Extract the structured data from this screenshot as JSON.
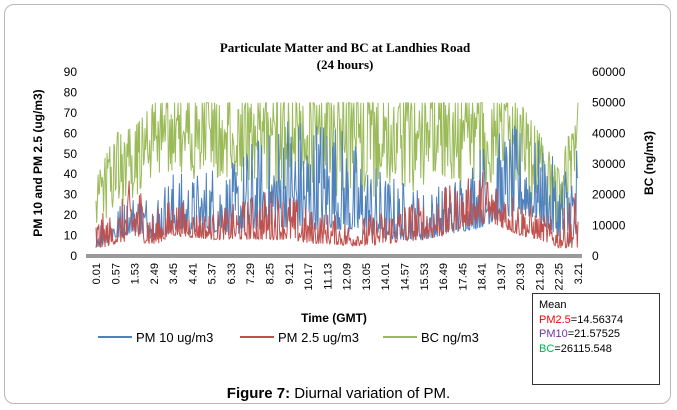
{
  "chart_data": {
    "type": "line",
    "title": "Particulate Matter and BC at Landhies Road",
    "subtitle": "(24 hours)",
    "xlabel": "Time (GMT)",
    "ylabel_left": "PM 10 and PM 2.5 (ug/m3)",
    "ylabel_right": "BC (ng/m3)",
    "ylim_left": [
      0,
      90
    ],
    "ylim_right": [
      0,
      60000
    ],
    "yticks_left": [
      "0",
      "10",
      "20",
      "30",
      "40",
      "50",
      "60",
      "70",
      "80",
      "90"
    ],
    "yticks_right": [
      "0",
      "10000",
      "20000",
      "30000",
      "40000",
      "50000",
      "60000"
    ],
    "x_tick_labels": [
      "0.01",
      "0.57",
      "1.53",
      "2.49",
      "3.45",
      "4.41",
      "5.37",
      "6.33",
      "7.29",
      "8.25",
      "9.21",
      "10.17",
      "11.13",
      "12.09",
      "13.05",
      "14.01",
      "14.57",
      "15.53",
      "16.49",
      "17.45",
      "18.41",
      "19.37",
      "20.33",
      "21.29",
      "22.25",
      "3.21"
    ],
    "grid": false,
    "legend_position": "bottom",
    "series": [
      {
        "name": "PM 10 ug/m3",
        "color": "#4f81bd",
        "axis": "left",
        "envelope": [
          [
            0,
            4,
            20
          ],
          [
            1,
            8,
            25
          ],
          [
            2,
            12,
            32
          ],
          [
            3,
            8,
            33
          ],
          [
            4,
            12,
            43
          ],
          [
            5,
            11,
            40
          ],
          [
            6,
            12,
            48
          ],
          [
            7,
            10,
            45
          ],
          [
            8,
            12,
            58
          ],
          [
            9,
            14,
            62
          ],
          [
            10,
            14,
            78
          ],
          [
            11,
            12,
            68
          ],
          [
            12,
            14,
            77
          ],
          [
            13,
            12,
            62
          ],
          [
            14,
            10,
            50
          ],
          [
            15,
            8,
            42
          ],
          [
            16,
            8,
            38
          ],
          [
            17,
            8,
            34
          ],
          [
            18,
            10,
            36
          ],
          [
            19,
            12,
            44
          ],
          [
            20,
            14,
            58
          ],
          [
            21,
            18,
            62
          ],
          [
            22,
            20,
            65
          ],
          [
            23,
            18,
            57
          ],
          [
            24,
            8,
            45
          ],
          [
            25,
            5,
            64
          ]
        ]
      },
      {
        "name": "PM 2.5 ug/m3",
        "color": "#c0504d",
        "axis": "left",
        "envelope": [
          [
            0,
            3,
            22
          ],
          [
            1,
            6,
            20
          ],
          [
            2,
            8,
            44
          ],
          [
            3,
            5,
            22
          ],
          [
            4,
            10,
            30
          ],
          [
            5,
            9,
            24
          ],
          [
            6,
            8,
            22
          ],
          [
            7,
            8,
            25
          ],
          [
            8,
            8,
            30
          ],
          [
            9,
            8,
            34
          ],
          [
            10,
            8,
            32
          ],
          [
            11,
            6,
            24
          ],
          [
            12,
            6,
            22
          ],
          [
            13,
            5,
            18
          ],
          [
            14,
            5,
            20
          ],
          [
            15,
            6,
            24
          ],
          [
            16,
            7,
            28
          ],
          [
            17,
            8,
            30
          ],
          [
            18,
            10,
            34
          ],
          [
            19,
            14,
            36
          ],
          [
            20,
            16,
            44
          ],
          [
            21,
            14,
            38
          ],
          [
            22,
            10,
            30
          ],
          [
            23,
            8,
            22
          ],
          [
            24,
            4,
            18
          ],
          [
            25,
            4,
            38
          ]
        ]
      },
      {
        "name": "BC ng/m3",
        "color": "#9bbb59",
        "axis": "right",
        "envelope": [
          [
            0,
            3000,
            25000
          ],
          [
            1,
            6000,
            40000
          ],
          [
            2,
            10000,
            42000
          ],
          [
            3,
            15000,
            50000
          ],
          [
            4,
            20000,
            50000
          ],
          [
            5,
            15000,
            50000
          ],
          [
            6,
            18000,
            50000
          ],
          [
            7,
            14000,
            50000
          ],
          [
            8,
            12000,
            50000
          ],
          [
            9,
            12000,
            50000
          ],
          [
            10,
            10000,
            50000
          ],
          [
            11,
            9000,
            50000
          ],
          [
            12,
            9000,
            50000
          ],
          [
            13,
            9000,
            50000
          ],
          [
            14,
            8000,
            50000
          ],
          [
            15,
            9000,
            50000
          ],
          [
            16,
            10000,
            50000
          ],
          [
            17,
            12000,
            50000
          ],
          [
            18,
            12000,
            50000
          ],
          [
            19,
            12000,
            50000
          ],
          [
            20,
            14000,
            50000
          ],
          [
            21,
            12000,
            50000
          ],
          [
            22,
            8000,
            50000
          ],
          [
            23,
            6000,
            40000
          ],
          [
            24,
            4000,
            28000
          ],
          [
            25,
            4000,
            50000
          ]
        ]
      }
    ]
  },
  "mean_box": {
    "heading": "Mean",
    "items": [
      {
        "label": "PM2.5",
        "value": "=14.56374",
        "color": "#ff0000"
      },
      {
        "label": "PM10",
        "value": "=21.57525",
        "color": "#7030a0"
      },
      {
        "label": "BC",
        "value": "=26115.548",
        "color": "#00b050"
      }
    ]
  },
  "caption": {
    "label": "Figure 7:",
    "text": " Diurnal variation of PM."
  }
}
